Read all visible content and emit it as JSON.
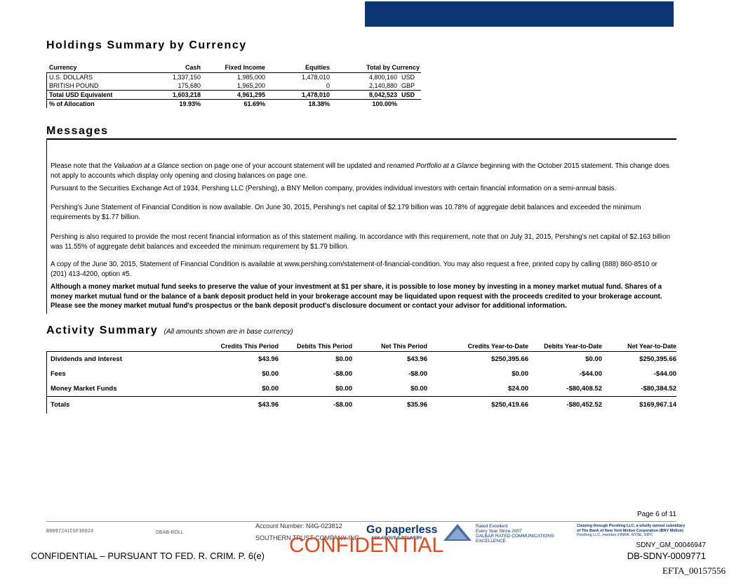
{
  "holdings": {
    "title": "Holdings Summary by Currency",
    "headers": [
      "Currency",
      "Cash",
      "Fixed Income",
      "Equities",
      "Total by Currency"
    ],
    "rows": [
      {
        "currency": "U.S. DOLLARS",
        "cash": "1,337,150",
        "fixed": "1,985,000",
        "equities": "1,478,010",
        "total": "4,800,160",
        "code": "USD"
      },
      {
        "currency": "BRITISH POUND",
        "cash": "175,680",
        "fixed": "1,965,200",
        "equities": "0",
        "total": "2,140,880",
        "code": "GBP"
      }
    ],
    "usd_equiv": {
      "label": "Total USD Equivalent",
      "cash": "1,603,218",
      "fixed": "4,961,295",
      "equities": "1,478,010",
      "total": "8,042,523",
      "code": "USD"
    },
    "allocation": {
      "label": "% of Allocation",
      "cash": "19.93%",
      "fixed": "61.69%",
      "equities": "18.38%",
      "total": "100.00%"
    }
  },
  "messages": {
    "title": "Messages",
    "p1a": "Please note that the ",
    "p1b": "Valuation at a Glance",
    "p1c": " section on page one of your account statement will be updated and renamed ",
    "p1d": "Portfolio at a Glance",
    "p1e": " beginning with the October 2015 statement. This change does not apply to accounts which display only opening and closing balances on page one.",
    "p2": "Pursuant to the Securities Exchange Act of 1934, Pershing LLC (Pershing), a BNY Mellon company, provides individual investors with certain financial information on a semi-annual basis.",
    "p3": "Pershing's June Statement of Financial Condition is now available. On June 30, 2015, Pershing's net capital of $2.179 billion was 10.78% of aggregate debit balances and exceeded the minimum requirements by $1.77 billion.",
    "p4": "Pershing is also required to provide the most recent financial information as of this statement mailing. In accordance with this requirement, note that on July 31, 2015, Pershing's net capital of $2.163 billion was 11.55% of aggregate debit balances and exceeded the minimum requirement by $1.79 billion.",
    "p5": "A copy of the June 30, 2015, Statement of Financial Condition is available at www.pershing.com/statement-of-financial-condition. You may also request a free, printed copy by calling (888) 860-8510 or (201) 413-4200, option #5.",
    "p6": "Although a money market mutual fund seeks to preserve the value of your investment at $1 per share, it is possible to lose money by investing in a money market mutual fund. Shares of a money market mutual fund or the balance of a bank deposit product held in your brokerage account may be liquidated upon request with the proceeds credited to your brokerage account. Please see the money market mutual fund's prospectus or the bank deposit product's disclosure document or contact your advisor for additional information."
  },
  "activity": {
    "title": "Activity Summary",
    "subtitle": "(All amounts shown are in base currency)",
    "headers": [
      "Credits This Period",
      "Debits This Period",
      "Net This Period",
      "Credits Year-to-Date",
      "Debits Year-to-Date",
      "Net Year-to-Date"
    ],
    "rows": [
      {
        "label": "Dividends and Interest",
        "v": [
          "$43.96",
          "$0.00",
          "$43.96",
          "$250,395.66",
          "$0.00",
          "$250,395.66"
        ]
      },
      {
        "label": "Fees",
        "v": [
          "$0.00",
          "-$8.00",
          "-$8.00",
          "$0.00",
          "-$44.00",
          "-$44.00"
        ]
      },
      {
        "label": "Money Market Funds",
        "v": [
          "$0.00",
          "$0.00",
          "$0.00",
          "$24.00",
          "-$80,408.52",
          "-$80,384.52"
        ]
      }
    ],
    "totals": {
      "label": "Totals",
      "v": [
        "$43.96",
        "-$8.00",
        "$35.96",
        "$250,419.66",
        "-$80,452.52",
        "$169,967.14"
      ]
    }
  },
  "footer": {
    "page": "Page 6 of 11",
    "code": "B0097241CSF30024",
    "roll": "DBAB-ROLL",
    "account": "Account Number: N4G-023812",
    "company": "SOUTHERN TRUST COMPANY INC",
    "go_paperless": "Go paperless",
    "ask": "ASK ABOUT E-DELIVERY",
    "rated1": "Rated Excellent",
    "rated2": "Every Year Since 2007",
    "rated3": "DALBAR RATED COMMUNICATIONS",
    "rated4": "EXCELLENCE",
    "clearing1": "Clearing through Pershing LLC, a wholly owned subsidiary",
    "clearing2": "of The Bank of New York Mellon Corporation (BNY Mellon)",
    "clearing3": "Pershing LLC, member FINRA, NYSE, SIPC",
    "confidential_red": "CONFIDENTIAL",
    "confidential_left": "CONFIDENTIAL – PURSUANT TO FED. R. CRIM. P. 6(e)",
    "sdny_gm": "SDNY_GM_00046947",
    "db_sdny": "DB-SDNY-0009771",
    "efta": "EFTA_00157556"
  }
}
